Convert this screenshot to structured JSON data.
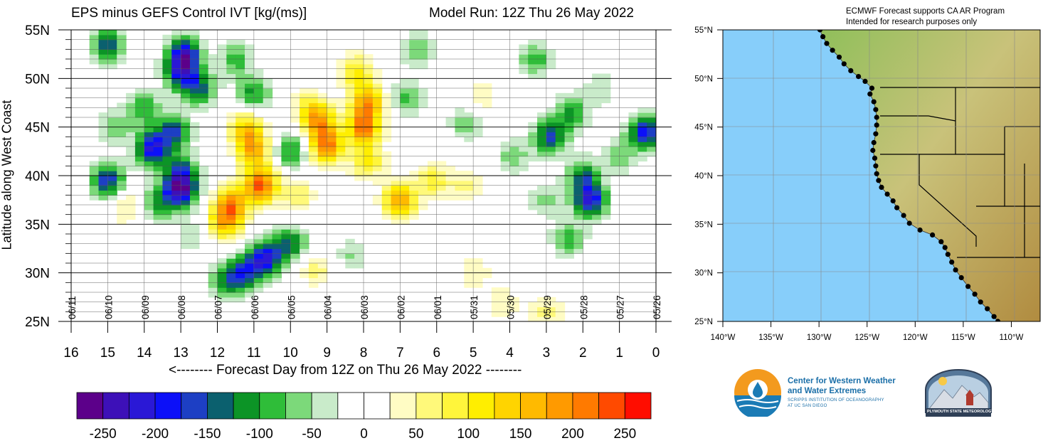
{
  "header": {
    "left_title": "EPS minus GEFS Control IVT [kg/(ms)]",
    "right_title": "Model Run: 12Z Thu 26 May 2022"
  },
  "map_header": {
    "line1": "ECMWF Forecast supports CA AR Program",
    "line2": "Intended for research purposes only"
  },
  "chart_data": {
    "type": "heatmap",
    "title": "EPS minus GEFS Control IVT [kg/(ms)]",
    "xlabel": "<-------- Forecast Day from 12Z on Thu 26 May 2022 --------",
    "ylabel": "Latitude along West Coast",
    "x_ticks": [
      "16",
      "15",
      "14",
      "13",
      "12",
      "11",
      "10",
      "9",
      "8",
      "7",
      "6",
      "5",
      "4",
      "3",
      "2",
      "1",
      "0"
    ],
    "x_range": [
      16,
      0
    ],
    "date_ticks": [
      {
        "label": "06/11",
        "day": 16
      },
      {
        "label": "06/10",
        "day": 15
      },
      {
        "label": "06/09",
        "day": 14
      },
      {
        "label": "06/08",
        "day": 13
      },
      {
        "label": "06/07",
        "day": 12
      },
      {
        "label": "06/06",
        "day": 11
      },
      {
        "label": "06/05",
        "day": 10
      },
      {
        "label": "06/04",
        "day": 9
      },
      {
        "label": "06/03",
        "day": 8
      },
      {
        "label": "06/02",
        "day": 7
      },
      {
        "label": "06/01",
        "day": 6
      },
      {
        "label": "05/31",
        "day": 5
      },
      {
        "label": "05/30",
        "day": 4
      },
      {
        "label": "05/29",
        "day": 3
      },
      {
        "label": "05/28",
        "day": 2
      },
      {
        "label": "05/27",
        "day": 1
      },
      {
        "label": "05/26",
        "day": 0
      }
    ],
    "y_ticks": [
      {
        "label": "55N",
        "lat": 55
      },
      {
        "label": "50N",
        "lat": 50
      },
      {
        "label": "45N",
        "lat": 45
      },
      {
        "label": "40N",
        "lat": 40
      },
      {
        "label": "35N",
        "lat": 35
      },
      {
        "label": "30N",
        "lat": 30
      },
      {
        "label": "25N",
        "lat": 25
      }
    ],
    "y_range": [
      25,
      55
    ],
    "blobs": [
      {
        "day": 13.0,
        "lat": 50.5,
        "v": -150
      },
      {
        "day": 12.9,
        "lat": 52.5,
        "v": -200
      },
      {
        "day": 12.5,
        "lat": 49.0,
        "v": -130
      },
      {
        "day": 14.0,
        "lat": 47.0,
        "v": -100
      },
      {
        "day": 13.2,
        "lat": 44.5,
        "v": -150
      },
      {
        "day": 13.8,
        "lat": 42.8,
        "v": -200
      },
      {
        "day": 13.0,
        "lat": 40.5,
        "v": -130
      },
      {
        "day": 13.0,
        "lat": 38.5,
        "v": -220
      },
      {
        "day": 13.6,
        "lat": 37.2,
        "v": -100
      },
      {
        "day": 14.8,
        "lat": 45.0,
        "v": -70
      },
      {
        "day": 15.0,
        "lat": 39.5,
        "v": -170
      },
      {
        "day": 15.0,
        "lat": 53.5,
        "v": -150
      },
      {
        "day": 11.0,
        "lat": 48.5,
        "v": -110
      },
      {
        "day": 11.5,
        "lat": 52.0,
        "v": -90
      },
      {
        "day": 10.7,
        "lat": 31.5,
        "v": -200
      },
      {
        "day": 11.3,
        "lat": 30.0,
        "v": -160
      },
      {
        "day": 10.0,
        "lat": 33.0,
        "v": -130
      },
      {
        "day": 11.8,
        "lat": 29.0,
        "v": -90
      },
      {
        "day": 10.0,
        "lat": 42.5,
        "v": -110
      },
      {
        "day": 11.0,
        "lat": 42.5,
        "v": 160
      },
      {
        "day": 10.8,
        "lat": 39.0,
        "v": 230
      },
      {
        "day": 11.6,
        "lat": 37.2,
        "v": 180
      },
      {
        "day": 11.8,
        "lat": 35.2,
        "v": 150
      },
      {
        "day": 11.2,
        "lat": 44.8,
        "v": 140
      },
      {
        "day": 9.0,
        "lat": 43.0,
        "v": 200
      },
      {
        "day": 9.2,
        "lat": 45.5,
        "v": 160
      },
      {
        "day": 9.5,
        "lat": 47.0,
        "v": 80
      },
      {
        "day": 8.0,
        "lat": 45.0,
        "v": 210
      },
      {
        "day": 7.9,
        "lat": 47.7,
        "v": 170
      },
      {
        "day": 8.2,
        "lat": 50.8,
        "v": 100
      },
      {
        "day": 7.9,
        "lat": 41.5,
        "v": 110
      },
      {
        "day": 7.0,
        "lat": 37.5,
        "v": 180
      },
      {
        "day": 6.1,
        "lat": 39.5,
        "v": 90
      },
      {
        "day": 5.2,
        "lat": 39.0,
        "v": 60
      },
      {
        "day": 9.8,
        "lat": 38.0,
        "v": 70
      },
      {
        "day": 14.5,
        "lat": 36.8,
        "v": 60
      },
      {
        "day": 5.0,
        "lat": 30.0,
        "v": 50
      },
      {
        "day": 9.3,
        "lat": 30.3,
        "v": 60
      },
      {
        "day": 2.9,
        "lat": 44.0,
        "v": -160
      },
      {
        "day": 2.3,
        "lat": 46.5,
        "v": -110
      },
      {
        "day": 1.8,
        "lat": 37.5,
        "v": -200
      },
      {
        "day": 2.0,
        "lat": 40.0,
        "v": -120
      },
      {
        "day": 2.4,
        "lat": 33.5,
        "v": -90
      },
      {
        "day": 0.3,
        "lat": 44.5,
        "v": -190
      },
      {
        "day": 6.8,
        "lat": 48.0,
        "v": -80
      },
      {
        "day": 5.2,
        "lat": 45.5,
        "v": -70
      },
      {
        "day": 3.9,
        "lat": 42.0,
        "v": -70
      },
      {
        "day": 3.3,
        "lat": 52.0,
        "v": -90
      },
      {
        "day": 6.5,
        "lat": 53.0,
        "v": -80
      },
      {
        "day": 3.0,
        "lat": 37.5,
        "v": -60
      },
      {
        "day": 1.0,
        "lat": 42.0,
        "v": -70
      },
      {
        "day": 1.5,
        "lat": 49.0,
        "v": -50
      },
      {
        "day": 3.0,
        "lat": 26.0,
        "v": 60
      },
      {
        "day": 4.2,
        "lat": 26.8,
        "v": 50
      },
      {
        "day": 12.7,
        "lat": 33.8,
        "v": -50
      },
      {
        "day": 8.3,
        "lat": 31.8,
        "v": -55
      },
      {
        "day": 4.8,
        "lat": 48.0,
        "v": 50
      }
    ],
    "colorbar": {
      "colors": [
        "#5c008a",
        "#3d10b8",
        "#2a18d6",
        "#0c10f8",
        "#1d3fc4",
        "#0b606e",
        "#0c9426",
        "#2fbd39",
        "#7cd97a",
        "#c9ebca",
        "#ffffff",
        "#ffffff",
        "#fffcc4",
        "#fff97a",
        "#fff53b",
        "#ffee00",
        "#ffd400",
        "#ffba00",
        "#ff9a00",
        "#ff7a00",
        "#ff4a00",
        "#ff0d00"
      ],
      "labels": [
        "-250",
        "-200",
        "-150",
        "-100",
        "-50",
        "0",
        "50",
        "100",
        "150",
        "200",
        "250"
      ]
    }
  },
  "map": {
    "lat_labels": [
      "55°N",
      "50°N",
      "45°N",
      "40°N",
      "35°N",
      "30°N",
      "25°N"
    ],
    "lon_labels": [
      "140°W",
      "135°W",
      "130°W",
      "125°W",
      "120°W",
      "115°W",
      "110°W"
    ],
    "ocean_color": "#87cefa",
    "coast_points": [
      [
        -129.9,
        55.0
      ],
      [
        -129.6,
        54.3
      ],
      [
        -129.2,
        53.6
      ],
      [
        -128.6,
        52.9
      ],
      [
        -127.9,
        52.2
      ],
      [
        -127.4,
        51.5
      ],
      [
        -126.7,
        50.8
      ],
      [
        -125.9,
        50.2
      ],
      [
        -125.2,
        49.7
      ],
      [
        -124.5,
        49.0
      ],
      [
        -124.7,
        48.4
      ],
      [
        -124.3,
        47.6
      ],
      [
        -124.1,
        46.8
      ],
      [
        -124.0,
        46.0
      ],
      [
        -124.0,
        45.2
      ],
      [
        -124.1,
        44.3
      ],
      [
        -124.3,
        43.4
      ],
      [
        -124.4,
        42.6
      ],
      [
        -124.2,
        41.8
      ],
      [
        -124.1,
        41.0
      ],
      [
        -124.0,
        40.2
      ],
      [
        -123.8,
        39.5
      ],
      [
        -123.5,
        38.8
      ],
      [
        -122.9,
        38.1
      ],
      [
        -122.3,
        37.4
      ],
      [
        -121.9,
        36.7
      ],
      [
        -121.2,
        35.9
      ],
      [
        -120.6,
        35.1
      ],
      [
        -119.5,
        34.4
      ],
      [
        -118.2,
        33.9
      ],
      [
        -117.3,
        33.2
      ],
      [
        -116.9,
        32.6
      ],
      [
        -116.6,
        31.9
      ],
      [
        -116.2,
        31.1
      ],
      [
        -115.8,
        30.3
      ],
      [
        -115.2,
        29.5
      ],
      [
        -114.5,
        28.6
      ],
      [
        -113.8,
        27.8
      ],
      [
        -113.2,
        27.0
      ],
      [
        -112.5,
        26.3
      ],
      [
        -111.8,
        25.5
      ],
      [
        -111.4,
        25.0
      ]
    ]
  },
  "logos": {
    "cw3e_line1": "Center for Western Weather",
    "cw3e_line2": "and Water Extremes",
    "cw3e_line3": "SCRIPPS INSTITUTION OF OCEANOGRAPHY",
    "cw3e_line4": "AT UC SAN DIEGO",
    "psu_text": "PLYMOUTH STATE METEOROLOGY"
  }
}
